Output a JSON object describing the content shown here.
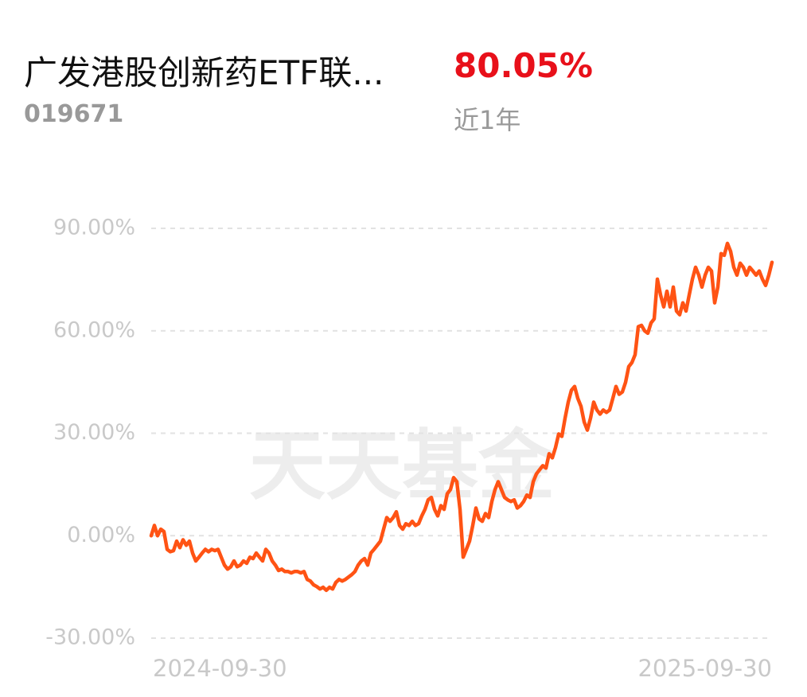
{
  "header": {
    "title": "广发港股创新药ETF联...",
    "return": "80.05%",
    "code": "019671",
    "period": "近1年"
  },
  "watermark": "天天基金",
  "chart_data": {
    "type": "line",
    "color": "#ff5314",
    "grid": true,
    "ylim": [
      -30,
      90
    ],
    "yticks": [
      {
        "value": -30,
        "label": "-30.00%"
      },
      {
        "value": 0,
        "label": "0.00%"
      },
      {
        "value": 30,
        "label": "30.00%"
      },
      {
        "value": 60,
        "label": "60.00%"
      },
      {
        "value": 90,
        "label": "90.00%"
      }
    ],
    "categories": [
      "2024-09-30",
      null,
      null,
      null,
      null,
      null,
      null,
      null,
      null,
      null,
      null,
      null,
      null,
      null,
      null,
      null,
      null,
      null,
      null,
      null,
      null,
      null,
      null,
      null,
      null,
      null,
      null,
      null,
      null,
      null,
      null,
      null,
      null,
      null,
      null,
      null,
      null,
      null,
      null,
      null,
      null,
      null,
      null,
      null,
      null,
      null,
      null,
      null,
      null,
      null,
      null,
      null,
      null,
      null,
      null,
      null,
      null,
      null,
      null,
      null,
      null,
      null,
      null,
      null,
      null,
      null,
      null,
      null,
      null,
      null,
      null,
      null,
      null,
      null,
      null,
      null,
      null,
      null,
      null,
      null,
      null,
      null,
      null,
      null,
      null,
      null,
      null,
      null,
      null,
      null,
      null,
      null,
      null,
      null,
      null,
      null,
      null,
      null,
      null,
      null,
      null,
      null,
      null,
      null,
      null,
      null,
      null,
      null,
      null,
      null,
      null,
      null,
      null,
      null,
      null,
      null,
      null,
      null,
      null,
      null,
      null,
      null,
      null,
      null,
      null,
      null,
      null,
      null,
      null,
      null,
      null,
      null,
      null,
      null,
      null,
      null,
      null,
      null,
      null,
      null,
      null,
      null,
      null,
      null,
      null,
      null,
      null,
      null,
      null,
      null,
      null,
      null,
      null,
      null,
      null,
      null,
      null,
      null,
      null,
      null,
      null,
      null,
      null,
      null,
      null,
      null,
      null,
      null,
      null,
      null,
      null,
      null,
      null,
      null,
      null,
      null,
      null,
      null,
      null,
      null,
      null,
      null,
      null,
      null,
      null,
      null,
      null,
      null,
      null,
      null,
      null,
      null,
      null,
      null,
      null,
      "2025-09-30"
    ],
    "values": [
      0,
      3,
      0,
      1.9,
      1.2,
      -4,
      -4.7,
      -4.4,
      -1.6,
      -3.5,
      -1.2,
      -2.8,
      -1.6,
      -5.1,
      -7.4,
      -6.3,
      -5.1,
      -4,
      -4.7,
      -4,
      -4.4,
      -4,
      -6.3,
      -8.6,
      -9.8,
      -9.1,
      -7.4,
      -9.1,
      -8.6,
      -7.4,
      -8.1,
      -6.3,
      -6.7,
      -5.1,
      -6.3,
      -7.4,
      -4,
      -5.1,
      -7.4,
      -8.6,
      -10.2,
      -9.8,
      -10.5,
      -10.5,
      -10.9,
      -10.5,
      -10.5,
      -10.9,
      -10.5,
      -12.8,
      -13.3,
      -14.4,
      -14.9,
      -15.6,
      -15.1,
      -16,
      -15.1,
      -15.6,
      -13.7,
      -12.8,
      -13.3,
      -12.8,
      -12.1,
      -11.4,
      -10.5,
      -8.6,
      -7.4,
      -6.7,
      -8.6,
      -5.1,
      -4,
      -2.8,
      -1.6,
      1.9,
      5.3,
      4.2,
      5.3,
      7,
      3,
      1.9,
      3.5,
      3,
      4.2,
      3,
      3.5,
      5.8,
      7.7,
      10.5,
      11.2,
      7.7,
      5.8,
      8.8,
      7.7,
      12.3,
      13.5,
      17,
      15.8,
      7.7,
      -6.3,
      -4,
      -1.6,
      3,
      8.1,
      4.9,
      4.2,
      6.5,
      5.3,
      10,
      13.5,
      15.8,
      13.5,
      11.2,
      10.5,
      10,
      10.5,
      8.1,
      8.8,
      10,
      11.9,
      11.2,
      15.8,
      18.1,
      19.3,
      20.5,
      19.8,
      24,
      22.8,
      25.8,
      29.8,
      29.1,
      34.4,
      39.1,
      42.6,
      43.7,
      40.2,
      37.9,
      33.3,
      30.9,
      34.4,
      39.1,
      36.8,
      35.6,
      36.8,
      36.1,
      36.8,
      40.2,
      43.7,
      41.4,
      42.1,
      44.9,
      49.5,
      50.7,
      53,
      61.2,
      61.6,
      60,
      59.3,
      62.3,
      63.5,
      75.1,
      70.5,
      67,
      71.6,
      67,
      72.8,
      65.8,
      64.7,
      68.2,
      65.8,
      70.5,
      75.1,
      78.6,
      76.3,
      72.8,
      76.3,
      78.6,
      77.5,
      68.2,
      72.8,
      82.6,
      82.1,
      85.6,
      83.3,
      78.6,
      76.3,
      79.8,
      78.6,
      76.3,
      78.6,
      77.5,
      76.3,
      77.5,
      75.1,
      73.3,
      76.3,
      80.05
    ]
  }
}
